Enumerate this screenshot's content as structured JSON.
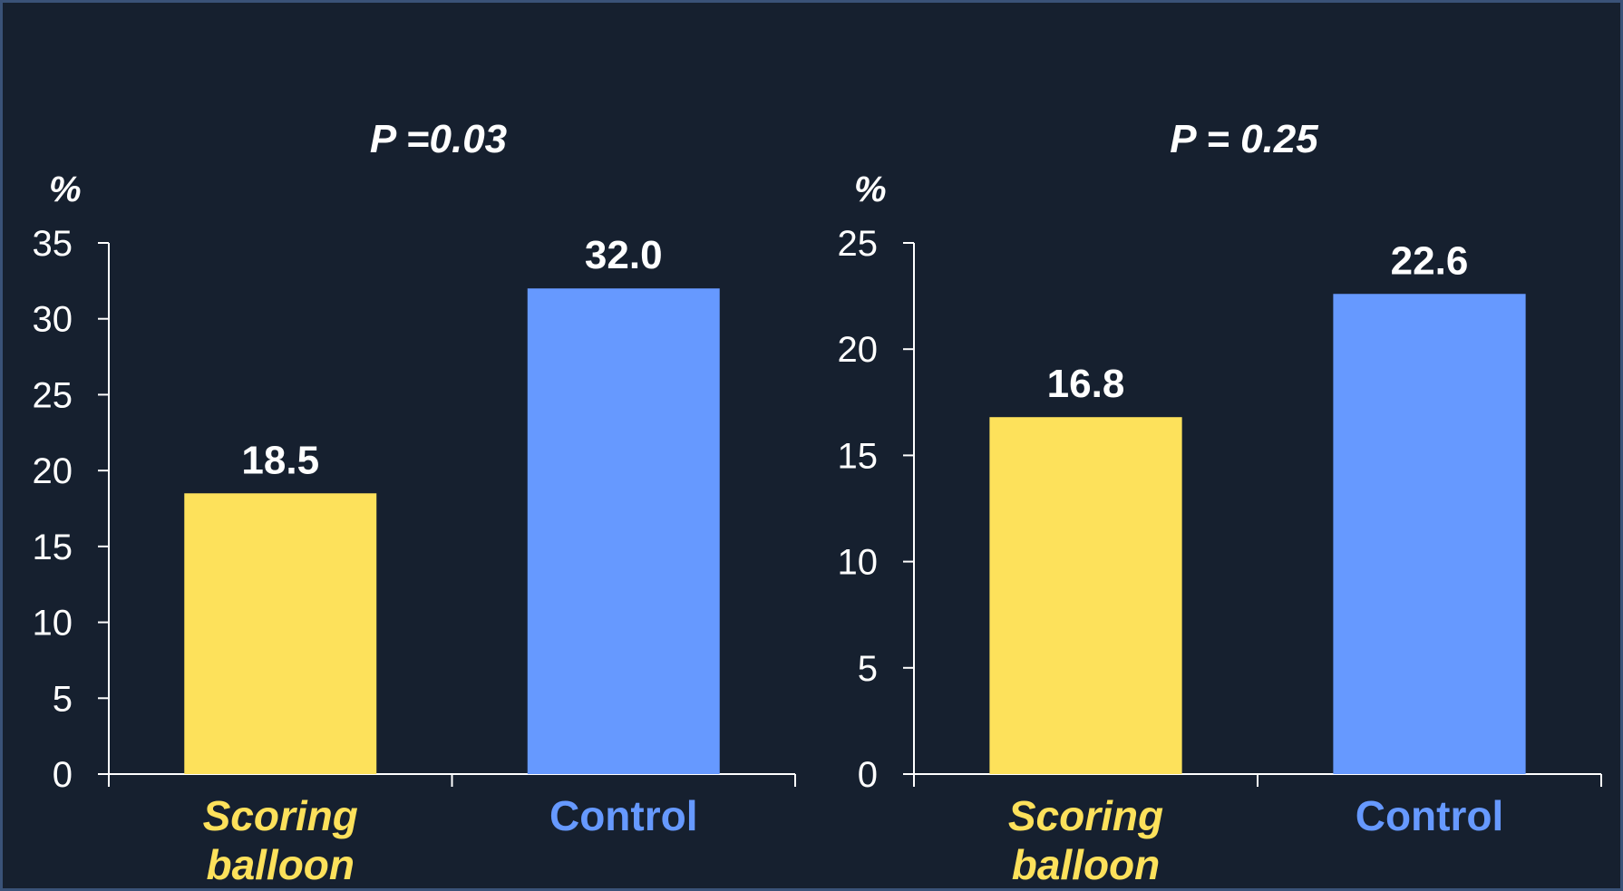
{
  "colors": {
    "background": "#16202f",
    "scoring_balloon": "#fde15b",
    "control": "#6699ff",
    "axis": "#ffffff",
    "text": "#ffffff"
  },
  "chart_data": [
    {
      "type": "bar",
      "title": "P =0.03",
      "ylabel": "%",
      "xlabel": "",
      "ylim": [
        0,
        35
      ],
      "yticks": [
        0,
        5,
        10,
        15,
        20,
        25,
        30,
        35
      ],
      "categories": [
        "Scoring balloon",
        "Control"
      ],
      "category_lines": [
        [
          "Scoring",
          "balloon"
        ],
        [
          "Control"
        ]
      ],
      "values": [
        18.5,
        32.0
      ],
      "value_labels": [
        "18.5",
        "32.0"
      ],
      "bar_colors": [
        "#fde15b",
        "#6699ff"
      ],
      "grid": false
    },
    {
      "type": "bar",
      "title": "P = 0.25",
      "ylabel": "%",
      "xlabel": "",
      "ylim": [
        0,
        25
      ],
      "yticks": [
        0,
        5,
        10,
        15,
        20,
        25
      ],
      "categories": [
        "Scoring balloon",
        "Control"
      ],
      "category_lines": [
        [
          "Scoring",
          "balloon"
        ],
        [
          "Control"
        ]
      ],
      "values": [
        16.8,
        22.6
      ],
      "value_labels": [
        "16.8",
        "22.6"
      ],
      "bar_colors": [
        "#fde15b",
        "#6699ff"
      ],
      "grid": false
    }
  ]
}
